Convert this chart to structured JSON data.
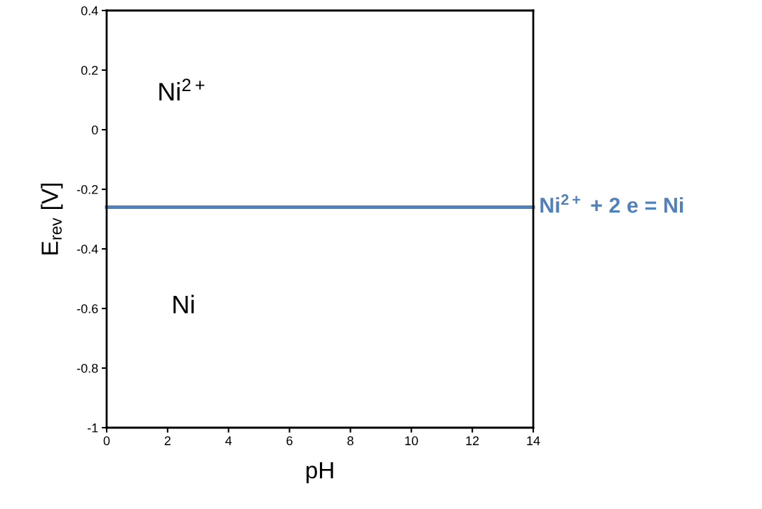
{
  "chart_data": {
    "type": "line",
    "xlabel": "pH",
    "ylabel": "E$_{rev}$ [V]",
    "series": [
      {
        "name": "Ni$^{2+}$ + 2 e = Ni",
        "color": "#4f81bd",
        "x": [
          0,
          14
        ],
        "values": [
          -0.26,
          -0.26
        ]
      }
    ],
    "xlim": [
      0,
      14
    ],
    "xticks": [
      0,
      2,
      4,
      6,
      8,
      10,
      12,
      14
    ],
    "ylim": [
      -1,
      0.4
    ],
    "yticks": [
      -1,
      -0.8,
      -0.6,
      -0.4,
      -0.2,
      0,
      0.2,
      0.4
    ],
    "annotations": [
      "Ni$^{2+}$",
      "Ni"
    ],
    "grid": false,
    "legend": false,
    "marker": "none",
    "line_style": "solid"
  }
}
